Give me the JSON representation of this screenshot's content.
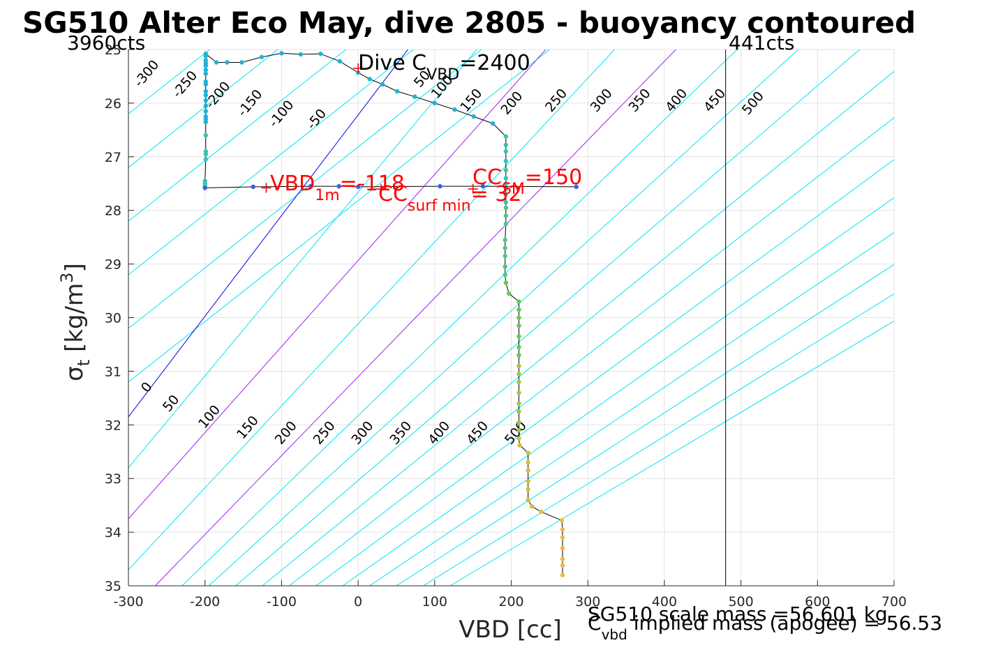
{
  "chart_data": {
    "type": "line",
    "title": "SG510 Alter Eco May, dive 2805 - buoyancy contoured",
    "xlabel": "VBD [cc]",
    "ylabel": {
      "main": "σ",
      "sub": "t",
      "unit": " [kg/m",
      "sup": "3",
      "close": "]"
    },
    "xlim": [
      -300,
      700
    ],
    "ylim": [
      25,
      35
    ],
    "y_reversed": true,
    "grid": true,
    "xticks": [
      -300,
      -200,
      -100,
      0,
      100,
      200,
      300,
      400,
      500,
      600,
      700
    ],
    "yticks": [
      25,
      26,
      27,
      28,
      29,
      30,
      31,
      32,
      33,
      34,
      35
    ],
    "counts_left": "3960cts",
    "counts_right": "441cts",
    "counts_right_x": 480,
    "contours": {
      "left_labels": [
        "-300",
        "-250",
        "-200",
        "-150",
        "-100",
        "-50",
        "50",
        "100",
        "150",
        "200",
        "250",
        "300",
        "350",
        "400",
        "450",
        "500"
      ],
      "bottom_labels": [
        "0",
        "50",
        "100",
        "150",
        "200",
        "250",
        "300",
        "350",
        "400",
        "450",
        "500"
      ],
      "zero_color": "#0000dd",
      "highlight_color": "#a020f0",
      "other_color": "#00e5ee",
      "levels": [
        {
          "level": -300,
          "color": "#00e5ee",
          "points": [
            [
              -300,
              26.2
            ],
            [
              -194,
              25
            ]
          ]
        },
        {
          "level": -250,
          "color": "#00e5ee",
          "points": [
            [
              -300,
              27.2
            ],
            [
              -105,
              25
            ]
          ]
        },
        {
          "level": -200,
          "color": "#00e5ee",
          "points": [
            [
              -300,
              28.2
            ],
            [
              -16,
              25
            ]
          ]
        },
        {
          "level": -150,
          "color": "#00e5ee",
          "points": [
            [
              -300,
              29.2
            ],
            [
              72,
              25
            ]
          ]
        },
        {
          "level": -100,
          "color": "#00e5ee",
          "points": [
            [
              -300,
              30.2
            ],
            [
              161,
              25
            ]
          ]
        },
        {
          "level": -50,
          "color": "#00e5ee",
          "points": [
            [
              -300,
              31.2
            ],
            [
              250,
              25
            ]
          ]
        },
        {
          "level": 0,
          "color": "#0000dd",
          "points": [
            [
              -300,
              31.85
            ],
            [
              65,
              25
            ]
          ]
        },
        {
          "level": 50,
          "color": "#00e5ee",
          "points": [
            [
              -300,
              32.8
            ],
            [
              155,
              25
            ]
          ]
        },
        {
          "level": 100,
          "color": "#a020f0",
          "points": [
            [
              -300,
              33.75
            ],
            [
              245,
              25
            ]
          ]
        },
        {
          "level": 150,
          "color": "#00e5ee",
          "points": [
            [
              -300,
              34.7
            ],
            [
              335,
              25
            ]
          ]
        },
        {
          "level": 200,
          "color": "#a020f0",
          "points": [
            [
              -265,
              35
            ],
            [
              415,
              25
            ]
          ]
        },
        {
          "level": 250,
          "color": "#00e5ee",
          "points": [
            [
              -230,
              35
            ],
            [
              495,
              25
            ]
          ]
        },
        {
          "level": 300,
          "color": "#00e5ee",
          "points": [
            [
              -195,
              35
            ],
            [
              575,
              25
            ]
          ]
        },
        {
          "level": 350,
          "color": "#00e5ee",
          "points": [
            [
              -160,
              35
            ],
            [
              655,
              25
            ]
          ]
        },
        {
          "level": 400,
          "color": "#00e5ee",
          "points": [
            [
              -125,
              35
            ],
            [
              735,
              25
            ]
          ]
        },
        {
          "level": 450,
          "color": "#00e5ee",
          "points": [
            [
              -90,
              35
            ],
            [
              815,
              25
            ]
          ]
        },
        {
          "level": 500,
          "color": "#00e5ee",
          "points": [
            [
              -55,
              35
            ],
            [
              895,
              25
            ]
          ]
        },
        {
          "level": 550,
          "color": "#00e5ee",
          "points": [
            [
              -20,
              35
            ],
            [
              975,
              25
            ]
          ]
        },
        {
          "level": 600,
          "color": "#00e5ee",
          "points": [
            [
              15,
              35
            ],
            [
              1055,
              25
            ]
          ]
        },
        {
          "level": 650,
          "color": "#00e5ee",
          "points": [
            [
              50,
              35
            ],
            [
              1135,
              25
            ]
          ]
        },
        {
          "level": 700,
          "color": "#00e5ee",
          "points": [
            [
              85,
              35
            ],
            [
              1215,
              25
            ]
          ]
        },
        {
          "level": 750,
          "color": "#00e5ee",
          "points": [
            [
              120,
              35
            ],
            [
              1295,
              25
            ]
          ]
        }
      ]
    },
    "series": [
      {
        "points": [
          [
            -200,
            27.58
          ],
          [
            -200,
            27.55
          ],
          [
            -200,
            27.5
          ],
          [
            -200,
            27.45
          ],
          [
            -199,
            27.05
          ],
          [
            -199,
            26.95
          ],
          [
            -199,
            26.9
          ],
          [
            -199,
            26.6
          ],
          [
            -199,
            26.35
          ],
          [
            -199,
            26.3
          ],
          [
            -199,
            26.25
          ],
          [
            -199,
            26.15
          ],
          [
            -199,
            26.05
          ],
          [
            -199,
            25.95
          ],
          [
            -199,
            25.85
          ],
          [
            -199,
            25.78
          ],
          [
            -199,
            25.65
          ],
          [
            -199,
            25.6
          ],
          [
            -199,
            25.45
          ],
          [
            -199,
            25.38
          ],
          [
            -199,
            25.3
          ],
          [
            -199,
            25.25
          ],
          [
            -199,
            25.2
          ],
          [
            -199,
            25.12
          ],
          [
            -199,
            25.08
          ],
          [
            -185,
            25.24
          ],
          [
            -171,
            25.24
          ],
          [
            -152,
            25.24
          ],
          [
            -126,
            25.14
          ],
          [
            -100,
            25.07
          ],
          [
            -75,
            25.09
          ],
          [
            -49,
            25.08
          ],
          [
            -24,
            25.22
          ],
          [
            0,
            25.43
          ],
          [
            15,
            25.55
          ],
          [
            32,
            25.65
          ],
          [
            51,
            25.78
          ],
          [
            74,
            25.88
          ],
          [
            100,
            26.0
          ],
          [
            126,
            26.12
          ],
          [
            151,
            26.25
          ],
          [
            176,
            26.38
          ],
          [
            193,
            26.62
          ],
          [
            193,
            26.78
          ],
          [
            193,
            26.9
          ],
          [
            193,
            27.08
          ],
          [
            193,
            27.25
          ],
          [
            193,
            27.4
          ],
          [
            193,
            27.5
          ],
          [
            193,
            27.6
          ],
          [
            193,
            27.7
          ],
          [
            193,
            27.85
          ],
          [
            193,
            27.95
          ],
          [
            193,
            28.1
          ],
          [
            193,
            28.25
          ],
          [
            192,
            28.55
          ],
          [
            192,
            28.7
          ],
          [
            192,
            28.85
          ],
          [
            192,
            29.05
          ],
          [
            192,
            29.2
          ],
          [
            193,
            29.35
          ],
          [
            197,
            29.55
          ],
          [
            210,
            29.7
          ],
          [
            210,
            29.85
          ],
          [
            210,
            30.0
          ],
          [
            210,
            30.15
          ],
          [
            210,
            30.35
          ],
          [
            210,
            30.55
          ],
          [
            210,
            30.7
          ],
          [
            210,
            30.9
          ],
          [
            210,
            31.05
          ],
          [
            210,
            31.2
          ],
          [
            210,
            31.4
          ],
          [
            210,
            31.6
          ],
          [
            210,
            31.75
          ],
          [
            210,
            31.95
          ],
          [
            210,
            32.1
          ],
          [
            210,
            32.25
          ],
          [
            211,
            32.38
          ],
          [
            222,
            32.52
          ],
          [
            222,
            32.7
          ],
          [
            222,
            32.85
          ],
          [
            222,
            33.05
          ],
          [
            222,
            33.2
          ],
          [
            222,
            33.4
          ],
          [
            227,
            33.52
          ],
          [
            239,
            33.62
          ],
          [
            266,
            33.78
          ],
          [
            267,
            33.95
          ],
          [
            267,
            34.1
          ],
          [
            267,
            34.3
          ],
          [
            267,
            34.5
          ],
          [
            267,
            34.62
          ],
          [
            267,
            34.8
          ]
        ]
      },
      {
        "points": [
          [
            -200,
            27.58
          ],
          [
            -137,
            27.56
          ],
          [
            -62,
            27.55
          ],
          [
            -25,
            27.55
          ],
          [
            0,
            27.56
          ],
          [
            107,
            27.55
          ],
          [
            163,
            27.55
          ],
          [
            285,
            27.56
          ]
        ]
      }
    ],
    "markers": [
      {
        "x": 0,
        "y": 25.35
      },
      {
        "x": -120,
        "y": 27.58
      },
      {
        "x": 30,
        "y": 27.6
      },
      {
        "x": 150,
        "y": 27.6
      }
    ]
  },
  "annotations": {
    "dive_cvbd": {
      "pre": "Dive C",
      "sub": "VBD",
      "post": "=2400"
    },
    "vbd_1m": {
      "pre": "VBD",
      "sub": "1m",
      "post": "=-118"
    },
    "cc_surf_min": {
      "pre": "CC",
      "sub": "surf min",
      "post": "= 32"
    },
    "cc_sm": {
      "pre": "CC",
      "sub": "SM",
      "post": "=150"
    },
    "scale_mass": "SG510 scale mass =56.601 kg",
    "implied_mass": {
      "pre": "C",
      "sub": "vbd",
      "post": " implied mass (apogee) = 56.53"
    }
  }
}
